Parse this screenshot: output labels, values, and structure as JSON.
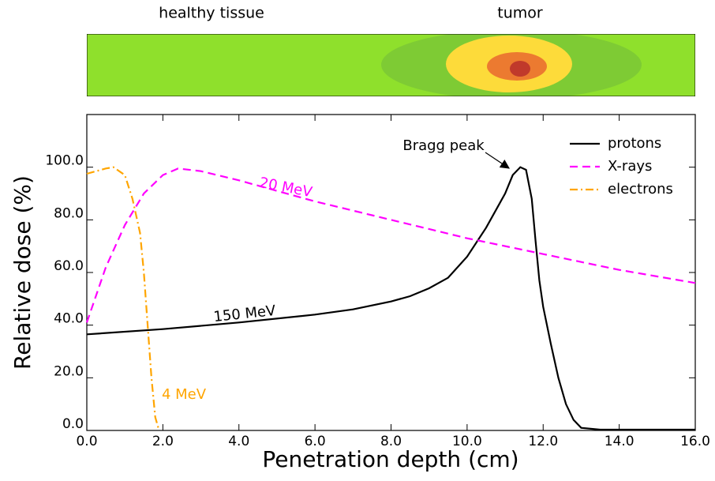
{
  "chart_data": {
    "type": "line",
    "region_labels": [
      "healthy tissue",
      "tumor"
    ],
    "xlabel": "Penetration depth (cm)",
    "ylabel": "Relative dose (%)",
    "xlim": [
      0,
      16
    ],
    "ylim": [
      0,
      120
    ],
    "xticks": [
      {
        "value": 0,
        "label": "0.0"
      },
      {
        "value": 2,
        "label": "2.0"
      },
      {
        "value": 4,
        "label": "4.0"
      },
      {
        "value": 6,
        "label": "6.0"
      },
      {
        "value": 8,
        "label": "8.0"
      },
      {
        "value": 10,
        "label": "10.0"
      },
      {
        "value": 12,
        "label": "12.0"
      },
      {
        "value": 14,
        "label": "14.0"
      },
      {
        "value": 16,
        "label": "16.0"
      }
    ],
    "yticks": [
      {
        "value": 0,
        "label": "0.0"
      },
      {
        "value": 20,
        "label": "20.0"
      },
      {
        "value": 40,
        "label": "40.0"
      },
      {
        "value": 60,
        "label": "60.0"
      },
      {
        "value": 80,
        "label": "80.0"
      },
      {
        "value": 100,
        "label": "100.0"
      }
    ],
    "legend": "upper right",
    "series": [
      {
        "name": "protons",
        "color": "#000000",
        "dash": "solid",
        "x": [
          0,
          2,
          4,
          6,
          7,
          8,
          8.5,
          9,
          9.5,
          10,
          10.5,
          11,
          11.2,
          11.4,
          11.55,
          11.7,
          11.8,
          11.9,
          12,
          12.2,
          12.4,
          12.6,
          12.8,
          13,
          13.5,
          16
        ],
        "values": [
          36.5,
          38.5,
          41,
          44,
          46,
          49,
          51,
          54,
          58,
          66,
          77,
          90,
          97,
          100,
          99,
          88,
          72,
          57,
          47,
          33,
          20,
          10,
          4,
          1,
          0.3,
          0.3
        ]
      },
      {
        "name": "X-rays",
        "color": "#ff00ff",
        "dash": "dashed",
        "x": [
          0,
          0.5,
          1,
          1.5,
          2,
          2.4,
          3,
          4,
          6,
          8,
          10,
          12,
          14,
          16
        ],
        "values": [
          41,
          62,
          78,
          90,
          97,
          99.5,
          98.5,
          95,
          87,
          80,
          73,
          67,
          61,
          56
        ]
      },
      {
        "name": "electrons",
        "color": "#ffa500",
        "dash": "dashdot",
        "x": [
          0,
          0.5,
          0.7,
          1,
          1.2,
          1.4,
          1.5,
          1.6,
          1.7,
          1.8,
          1.9
        ],
        "values": [
          97.5,
          99.5,
          100,
          97,
          88,
          75,
          60,
          40,
          20,
          5,
          0
        ]
      }
    ],
    "annotations": [
      "Bragg peak",
      "150 MeV",
      "20 MeV",
      "4 MeV"
    ]
  }
}
